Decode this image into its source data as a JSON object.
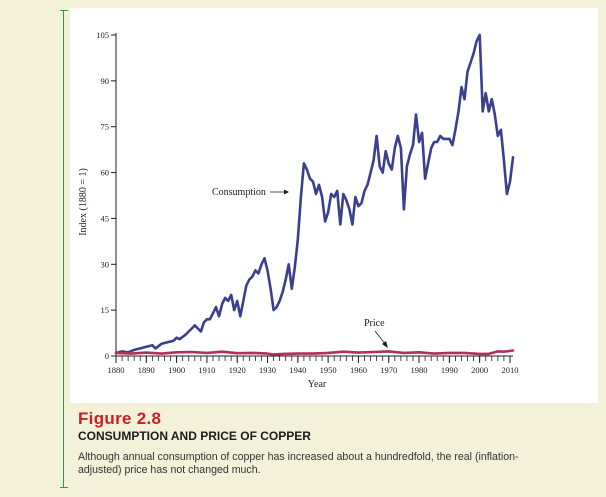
{
  "figure": {
    "label": "Figure 2.8",
    "title": "CONSUMPTION AND PRICE OF COPPER",
    "description": "Although annual consumption of copper has increased about a hundredfold, the real (inflation-adjusted) price has not changed much."
  },
  "colors": {
    "consumption": "#3a3f8f",
    "price": "#b0305a",
    "frame": "#2f9a44",
    "label_red": "#c8202a"
  },
  "chart_data": {
    "type": "line",
    "xlabel": "Year",
    "ylabel": "Index (1880 = 1)",
    "xlim": [
      1880,
      2011
    ],
    "ylim": [
      0,
      105
    ],
    "x_ticks": [
      1880,
      1890,
      1900,
      1910,
      1920,
      1930,
      1940,
      1950,
      1960,
      1970,
      1980,
      1990,
      2000,
      2010
    ],
    "y_ticks": [
      0,
      15,
      30,
      45,
      60,
      75,
      90,
      105
    ],
    "grid": false,
    "series": [
      {
        "name": "Consumption",
        "points": [
          [
            1880,
            1
          ],
          [
            1882,
            1.5
          ],
          [
            1884,
            1.2
          ],
          [
            1886,
            2
          ],
          [
            1888,
            2.5
          ],
          [
            1890,
            3
          ],
          [
            1892,
            3.5
          ],
          [
            1893,
            2.5
          ],
          [
            1895,
            4
          ],
          [
            1897,
            4.5
          ],
          [
            1899,
            5
          ],
          [
            1900,
            6
          ],
          [
            1901,
            5.5
          ],
          [
            1903,
            7
          ],
          [
            1904,
            8
          ],
          [
            1905,
            9
          ],
          [
            1906,
            10
          ],
          [
            1907,
            9
          ],
          [
            1908,
            8
          ],
          [
            1909,
            11
          ],
          [
            1910,
            12
          ],
          [
            1911,
            12
          ],
          [
            1912,
            14
          ],
          [
            1913,
            16
          ],
          [
            1914,
            13
          ],
          [
            1915,
            17
          ],
          [
            1916,
            19
          ],
          [
            1917,
            18
          ],
          [
            1918,
            20
          ],
          [
            1919,
            15
          ],
          [
            1920,
            18
          ],
          [
            1921,
            13
          ],
          [
            1922,
            18
          ],
          [
            1923,
            23
          ],
          [
            1924,
            25
          ],
          [
            1925,
            26
          ],
          [
            1926,
            28
          ],
          [
            1927,
            27
          ],
          [
            1928,
            30
          ],
          [
            1929,
            32
          ],
          [
            1930,
            28
          ],
          [
            1931,
            22
          ],
          [
            1932,
            15
          ],
          [
            1933,
            16
          ],
          [
            1934,
            18
          ],
          [
            1935,
            21
          ],
          [
            1936,
            25
          ],
          [
            1937,
            30
          ],
          [
            1938,
            22
          ],
          [
            1939,
            29
          ],
          [
            1940,
            38
          ],
          [
            1941,
            52
          ],
          [
            1942,
            63
          ],
          [
            1943,
            61
          ],
          [
            1944,
            58
          ],
          [
            1945,
            57
          ],
          [
            1946,
            53
          ],
          [
            1947,
            56
          ],
          [
            1948,
            52
          ],
          [
            1949,
            44
          ],
          [
            1950,
            47
          ],
          [
            1951,
            53
          ],
          [
            1952,
            52
          ],
          [
            1953,
            54
          ],
          [
            1954,
            43
          ],
          [
            1955,
            53
          ],
          [
            1956,
            51
          ],
          [
            1957,
            48
          ],
          [
            1958,
            43
          ],
          [
            1959,
            52
          ],
          [
            1960,
            49
          ],
          [
            1961,
            50
          ],
          [
            1962,
            54
          ],
          [
            1963,
            56
          ],
          [
            1964,
            60
          ],
          [
            1965,
            64
          ],
          [
            1966,
            72
          ],
          [
            1967,
            62
          ],
          [
            1968,
            60
          ],
          [
            1969,
            67
          ],
          [
            1970,
            63
          ],
          [
            1971,
            61
          ],
          [
            1972,
            68
          ],
          [
            1973,
            72
          ],
          [
            1974,
            68
          ],
          [
            1975,
            48
          ],
          [
            1976,
            62
          ],
          [
            1977,
            66
          ],
          [
            1978,
            69
          ],
          [
            1979,
            79
          ],
          [
            1980,
            70
          ],
          [
            1981,
            73
          ],
          [
            1982,
            58
          ],
          [
            1983,
            63
          ],
          [
            1984,
            68
          ],
          [
            1985,
            70
          ],
          [
            1986,
            70
          ],
          [
            1987,
            72
          ],
          [
            1988,
            71
          ],
          [
            1989,
            71
          ],
          [
            1990,
            71
          ],
          [
            1991,
            69
          ],
          [
            1992,
            74
          ],
          [
            1993,
            80
          ],
          [
            1994,
            88
          ],
          [
            1995,
            84
          ],
          [
            1996,
            93
          ],
          [
            1997,
            96
          ],
          [
            1998,
            99
          ],
          [
            1999,
            103
          ],
          [
            2000,
            105
          ],
          [
            2001,
            80
          ],
          [
            2002,
            86
          ],
          [
            2003,
            80
          ],
          [
            2004,
            84
          ],
          [
            2005,
            79
          ],
          [
            2006,
            72
          ],
          [
            2007,
            74
          ],
          [
            2008,
            64
          ],
          [
            2009,
            53
          ],
          [
            2010,
            57
          ],
          [
            2011,
            65
          ]
        ]
      },
      {
        "name": "Price",
        "points": [
          [
            1880,
            1
          ],
          [
            1885,
            0.8
          ],
          [
            1890,
            1.1
          ],
          [
            1895,
            0.8
          ],
          [
            1900,
            1.2
          ],
          [
            1905,
            1.3
          ],
          [
            1910,
            1
          ],
          [
            1915,
            1.4
          ],
          [
            1920,
            0.9
          ],
          [
            1925,
            1
          ],
          [
            1930,
            0.8
          ],
          [
            1932,
            0.5
          ],
          [
            1935,
            0.7
          ],
          [
            1940,
            0.8
          ],
          [
            1945,
            0.8
          ],
          [
            1950,
            1
          ],
          [
            1955,
            1.4
          ],
          [
            1960,
            1.1
          ],
          [
            1965,
            1.3
          ],
          [
            1970,
            1.5
          ],
          [
            1975,
            1
          ],
          [
            1980,
            1.2
          ],
          [
            1985,
            0.8
          ],
          [
            1990,
            1
          ],
          [
            1995,
            1
          ],
          [
            2000,
            0.7
          ],
          [
            2003,
            0.7
          ],
          [
            2006,
            1.5
          ],
          [
            2008,
            1.4
          ],
          [
            2011,
            1.8
          ]
        ]
      }
    ],
    "annotations": [
      {
        "text": "Consumption",
        "series": "Consumption"
      },
      {
        "text": "Price",
        "series": "Price"
      }
    ]
  }
}
